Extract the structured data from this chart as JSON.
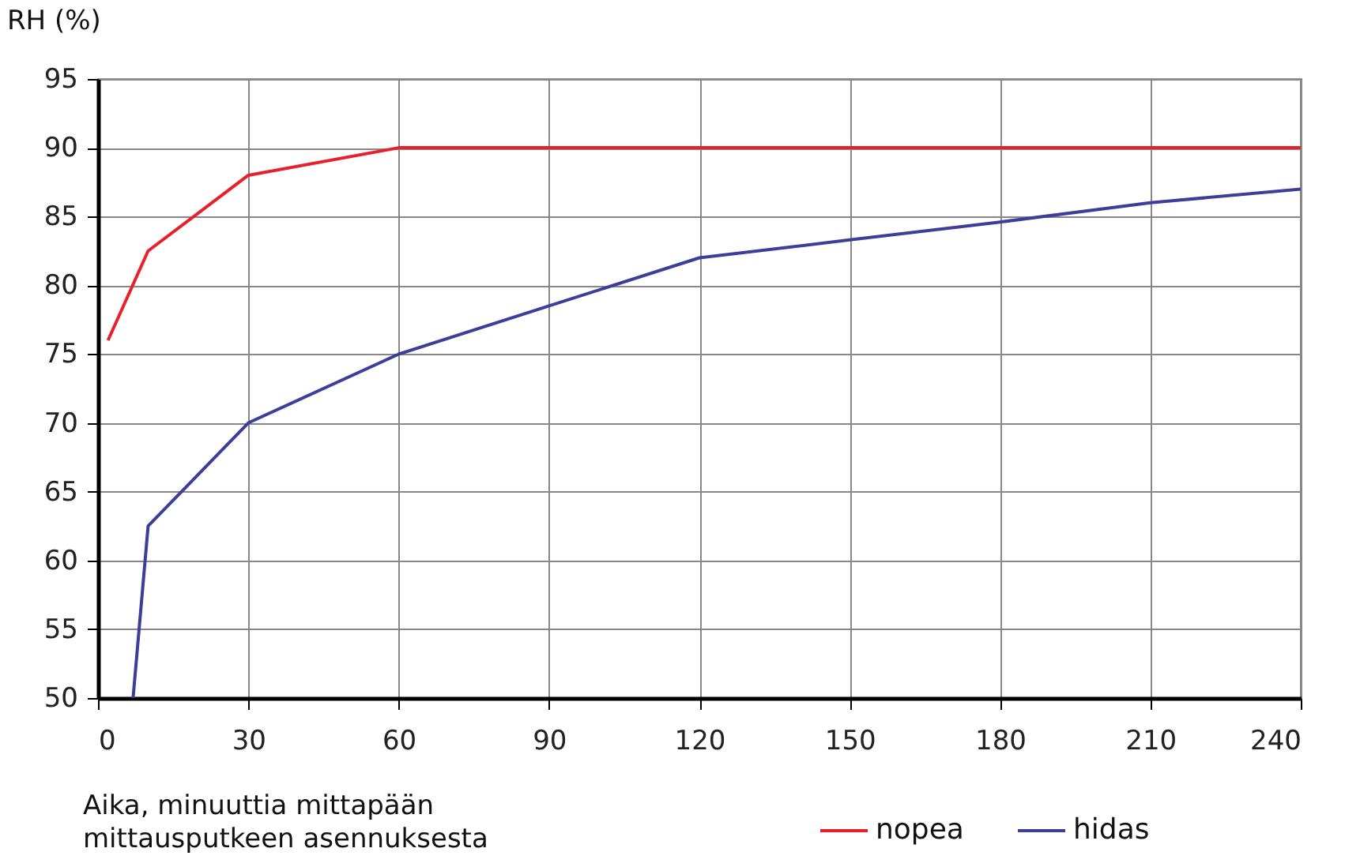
{
  "chart_data": {
    "type": "line",
    "xlabel": "Aika, minuuttia mittapään\nmittausputkeen asennuksesta",
    "ylabel": "RH (%)",
    "xlim": [
      0,
      240
    ],
    "xticks": [
      0,
      30,
      60,
      90,
      120,
      150,
      180,
      210,
      240
    ],
    "ylim": [
      50,
      95
    ],
    "yticks": [
      50,
      55,
      60,
      65,
      70,
      75,
      80,
      85,
      90,
      95
    ],
    "grid": true,
    "legend": "bottom right",
    "line_style": "solid",
    "marker": "none",
    "series": [
      {
        "name": "nopea",
        "color": "#e8202a",
        "x": [
          2,
          10,
          30,
          60,
          240
        ],
        "values": [
          76,
          82.5,
          88,
          90,
          90
        ]
      },
      {
        "name": "hidas",
        "color": "#3c3f9a",
        "x": [
          7,
          10,
          30,
          60,
          90,
          120,
          150,
          180,
          210,
          240
        ],
        "values": [
          50,
          62.5,
          70,
          75,
          78.5,
          82,
          83.3,
          84.6,
          86,
          87
        ]
      }
    ]
  }
}
